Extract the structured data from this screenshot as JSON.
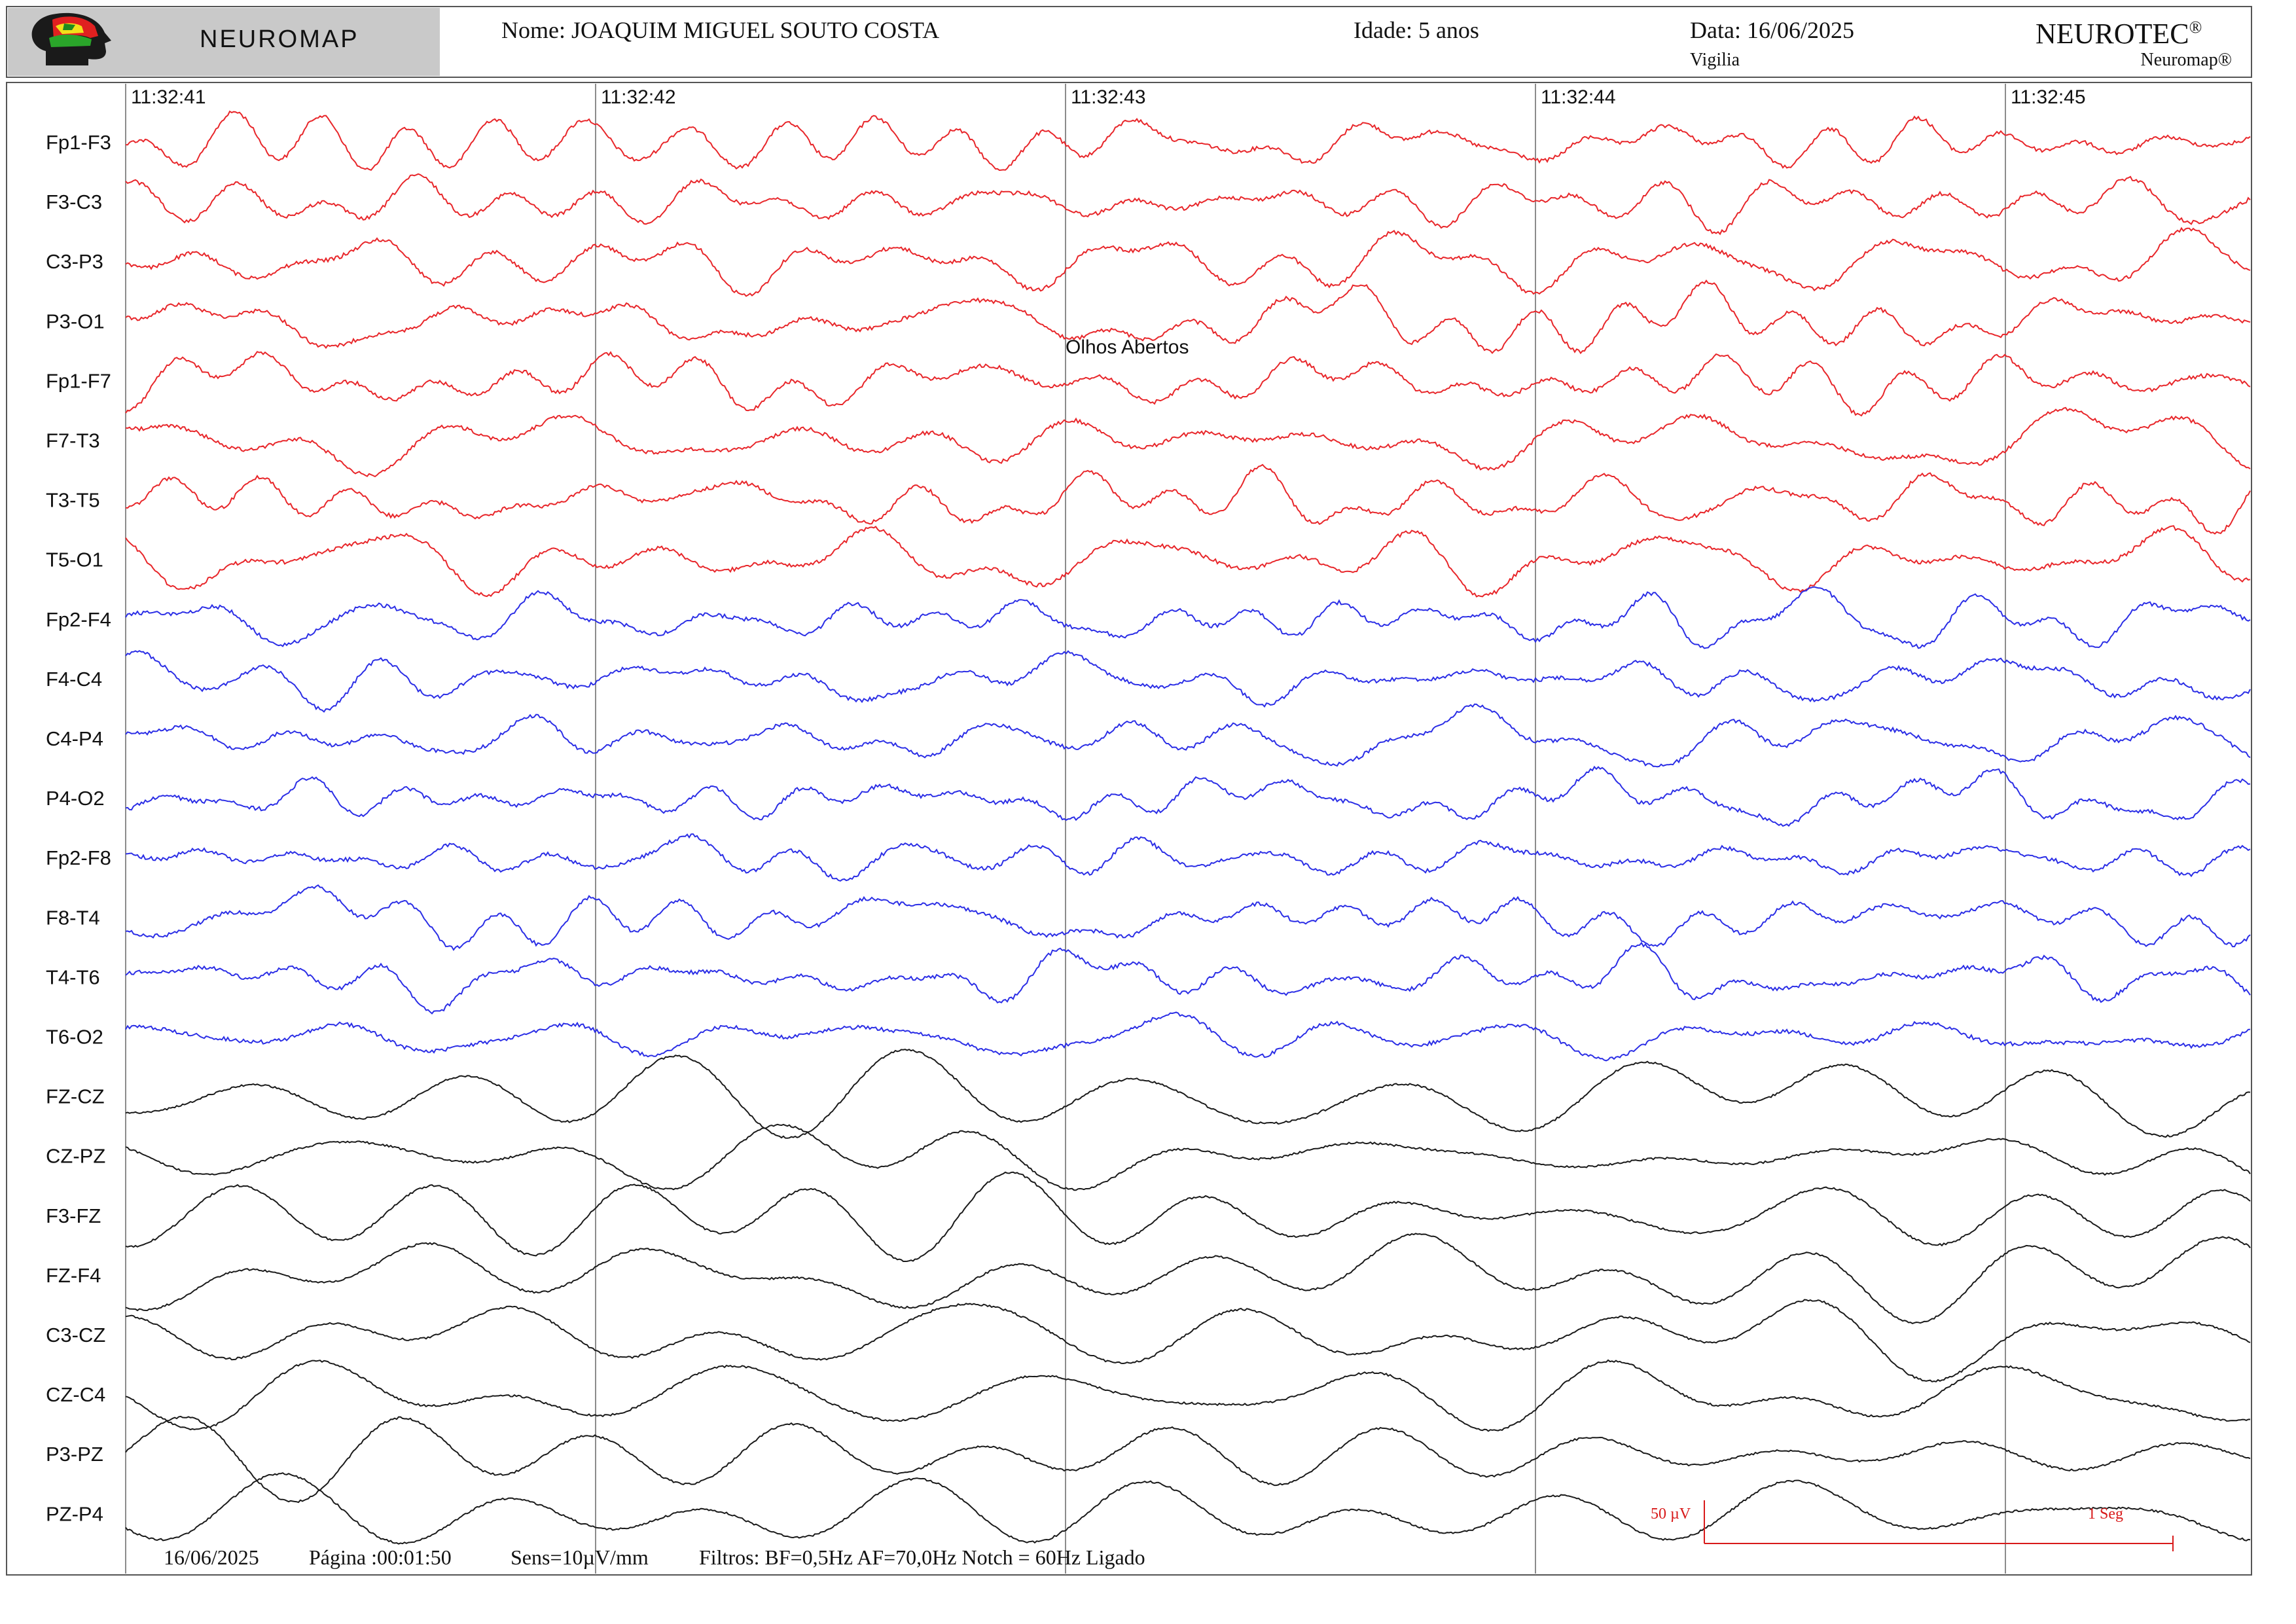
{
  "header": {
    "logo_text": "NEUROMAP",
    "patient_label": "Nome: JOAQUIM MIGUEL SOUTO COSTA",
    "age_label": "Idade: 5 anos",
    "date_label": "Data: 16/06/2025",
    "state_label": "Vigilia",
    "brand": "NEUROTEC",
    "brand_mark": "®",
    "product": "Neuromap®"
  },
  "timestamps": [
    "11:32:41",
    "11:32:42",
    "11:32:43",
    "11:32:44",
    "11:32:45"
  ],
  "annotation": {
    "text": "Olhos Abertos"
  },
  "colors": {
    "left_chain": "#e8262a",
    "right_chain": "#2b2ee6",
    "midline_chain": "#1a1a1a",
    "grid": "#8c8c8c",
    "header_box": "#c9c9c9",
    "calibration": "#d81a1a"
  },
  "channel_groups": [
    {
      "color_key": "left_chain",
      "channels": [
        "Fp1-F3",
        "F3-C3",
        "C3-P3",
        "P3-O1",
        "Fp1-F7",
        "F7-T3",
        "T3-T5",
        "T5-O1"
      ]
    },
    {
      "color_key": "right_chain",
      "channels": [
        "Fp2-F4",
        "F4-C4",
        "C4-P4",
        "P4-O2",
        "Fp2-F8",
        "F8-T4",
        "T4-T6",
        "T6-O2"
      ]
    },
    {
      "color_key": "midline_chain",
      "channels": [
        "FZ-CZ",
        "CZ-PZ",
        "F3-FZ",
        "FZ-F4",
        "C3-CZ",
        "CZ-C4",
        "P3-PZ",
        "PZ-P4"
      ]
    }
  ],
  "calibration": {
    "amplitude_label": "50 µV",
    "time_label": "1 Seg"
  },
  "footer": {
    "date": "16/06/2025",
    "page": "Página :00:01:50",
    "sens": "Sens=10µV/mm",
    "filters": "Filtros:  BF=0,5Hz  AF=70,0Hz  Notch = 60Hz Ligado"
  }
}
